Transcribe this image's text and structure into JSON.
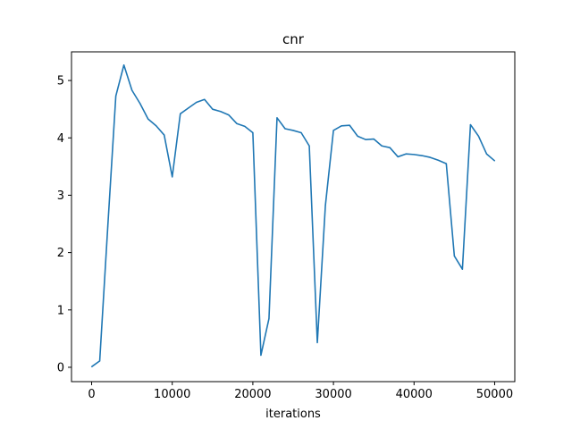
{
  "chart_data": {
    "type": "line",
    "title": "cnr",
    "xlabel": "iterations",
    "ylabel": "",
    "xlim": [
      -2500,
      52500
    ],
    "ylim": [
      -0.25,
      5.5
    ],
    "xticks": [
      0,
      10000,
      20000,
      30000,
      40000,
      50000
    ],
    "xtick_labels": [
      "0",
      "10000",
      "20000",
      "30000",
      "40000",
      "50000"
    ],
    "yticks": [
      0,
      1,
      2,
      3,
      4,
      5
    ],
    "ytick_labels": [
      "0",
      "1",
      "2",
      "3",
      "4",
      "5"
    ],
    "grid": false,
    "series": [
      {
        "color": "#1f77b4",
        "x": [
          0,
          1000,
          2000,
          3000,
          4000,
          5000,
          6000,
          7000,
          8000,
          9000,
          10000,
          11000,
          12000,
          13000,
          14000,
          15000,
          16000,
          17000,
          18000,
          19000,
          20000,
          21000,
          22000,
          23000,
          24000,
          25000,
          26000,
          27000,
          28000,
          29000,
          30000,
          31000,
          32000,
          33000,
          34000,
          35000,
          36000,
          37000,
          38000,
          39000,
          40000,
          41000,
          42000,
          43000,
          44000,
          45000,
          46000,
          47000,
          48000,
          49000,
          50000
        ],
        "values": [
          0.01,
          0.11,
          2.45,
          4.73,
          5.27,
          4.83,
          4.6,
          4.33,
          4.21,
          4.05,
          3.32,
          4.42,
          4.52,
          4.62,
          4.67,
          4.5,
          4.46,
          4.4,
          4.25,
          4.2,
          4.09,
          0.21,
          0.85,
          4.35,
          4.16,
          4.13,
          4.09,
          3.86,
          0.43,
          2.82,
          4.13,
          4.21,
          4.22,
          4.03,
          3.97,
          3.98,
          3.86,
          3.83,
          3.67,
          3.72,
          3.71,
          3.69,
          3.66,
          3.61,
          3.55,
          1.94,
          1.71,
          4.23,
          4.03,
          3.72,
          3.6
        ]
      }
    ]
  }
}
